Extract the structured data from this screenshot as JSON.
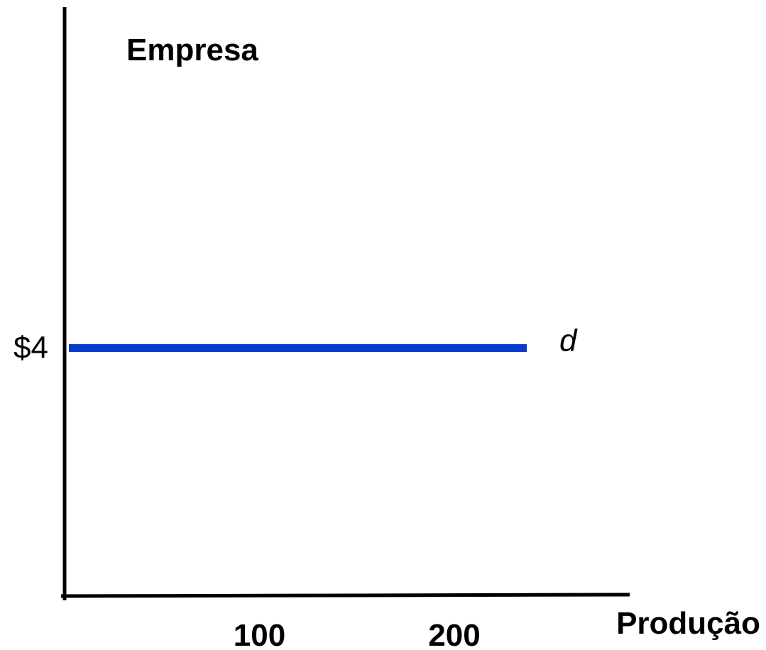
{
  "colors": {
    "axis": "#000000",
    "demand_line": "#0a3ccc",
    "background": "#ffffff"
  },
  "chart_data": {
    "type": "line",
    "title": "Empresa",
    "xlabel": "Produção",
    "ylabel": "",
    "x_ticks": [
      {
        "value": 100,
        "label": "100"
      },
      {
        "value": 200,
        "label": "200"
      }
    ],
    "y_ticks": [
      {
        "value": 4,
        "label": "$4"
      }
    ],
    "xlim": [
      0,
      290
    ],
    "ylim": [
      0,
      9.5
    ],
    "grid": false,
    "series": [
      {
        "name": "d",
        "x": [
          0,
          235
        ],
        "y": [
          4,
          4
        ]
      }
    ]
  }
}
